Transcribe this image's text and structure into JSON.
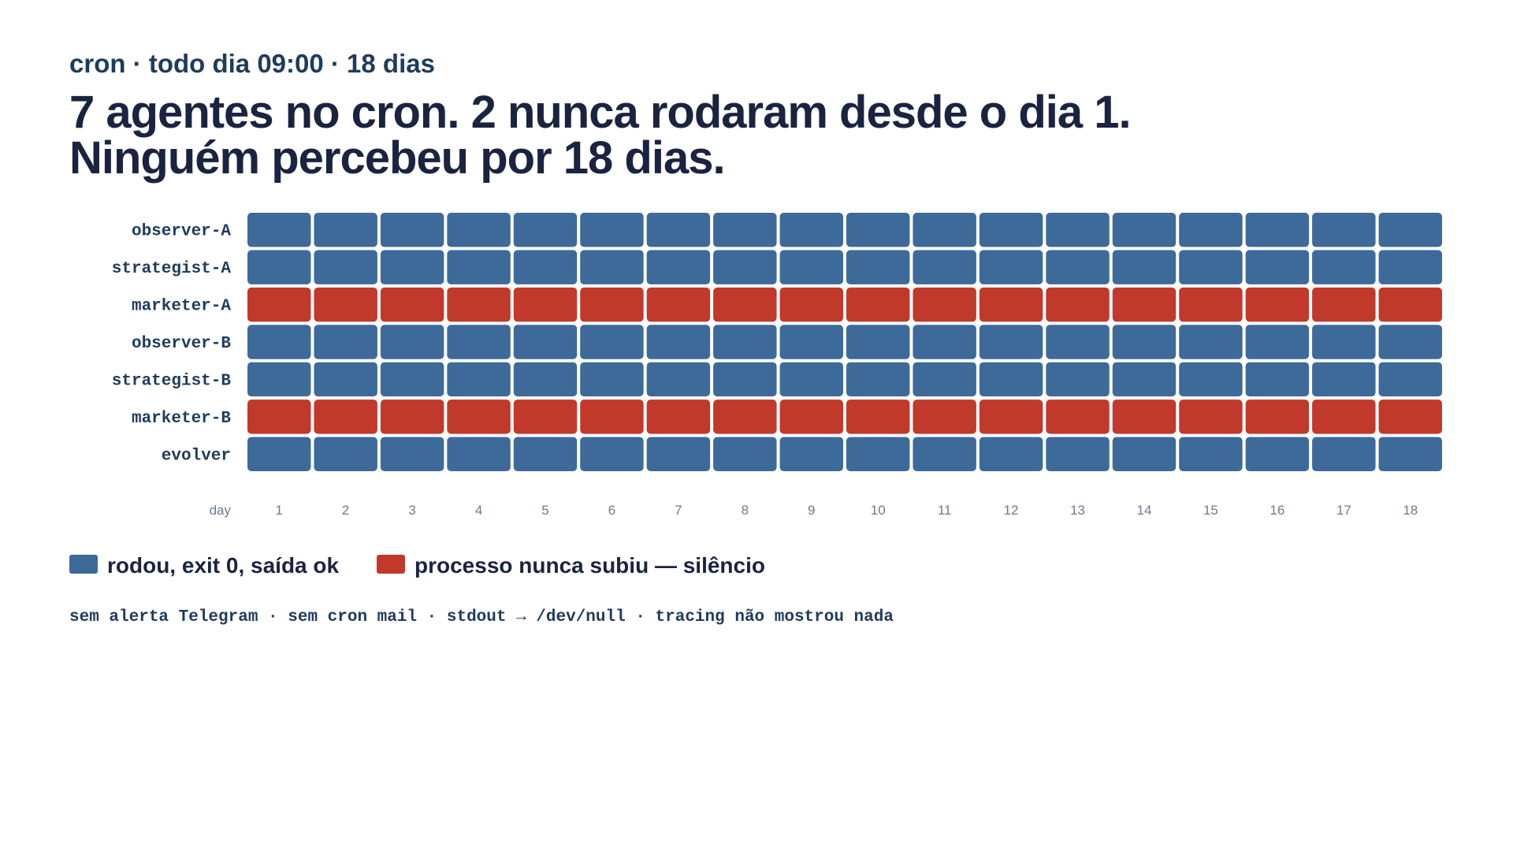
{
  "chart_data": {
    "type": "heatmap",
    "subtitle": "cron · todo dia 09:00 · 18 dias",
    "title": [
      "7 agentes no cron. 2 nunca rodaram desde o dia 1.",
      "Ninguém percebeu por 18 dias."
    ],
    "rows": [
      "observer-A",
      "strategist-A",
      "marketer-A",
      "observer-B",
      "strategist-B",
      "marketer-B",
      "evolver"
    ],
    "x_label": "day",
    "x": [
      1,
      2,
      3,
      4,
      5,
      6,
      7,
      8,
      9,
      10,
      11,
      12,
      13,
      14,
      15,
      16,
      17,
      18
    ],
    "series": [
      {
        "name": "rodou, exit 0, saída ok",
        "color": "#3d6a99"
      },
      {
        "name": "processo nunca subiu — silêncio",
        "color": "#c0392b"
      }
    ],
    "values": [
      [
        0,
        0,
        0,
        0,
        0,
        0,
        0,
        0,
        0,
        0,
        0,
        0,
        0,
        0,
        0,
        0,
        0,
        0
      ],
      [
        0,
        0,
        0,
        0,
        0,
        0,
        0,
        0,
        0,
        0,
        0,
        0,
        0,
        0,
        0,
        0,
        0,
        0
      ],
      [
        1,
        1,
        1,
        1,
        1,
        1,
        1,
        1,
        1,
        1,
        1,
        1,
        1,
        1,
        1,
        1,
        1,
        1
      ],
      [
        0,
        0,
        0,
        0,
        0,
        0,
        0,
        0,
        0,
        0,
        0,
        0,
        0,
        0,
        0,
        0,
        0,
        0
      ],
      [
        0,
        0,
        0,
        0,
        0,
        0,
        0,
        0,
        0,
        0,
        0,
        0,
        0,
        0,
        0,
        0,
        0,
        0
      ],
      [
        1,
        1,
        1,
        1,
        1,
        1,
        1,
        1,
        1,
        1,
        1,
        1,
        1,
        1,
        1,
        1,
        1,
        1
      ],
      [
        0,
        0,
        0,
        0,
        0,
        0,
        0,
        0,
        0,
        0,
        0,
        0,
        0,
        0,
        0,
        0,
        0,
        0
      ]
    ],
    "footnote": "sem alerta Telegram · sem cron mail · stdout → /dev/null · tracing não mostrou nada"
  }
}
